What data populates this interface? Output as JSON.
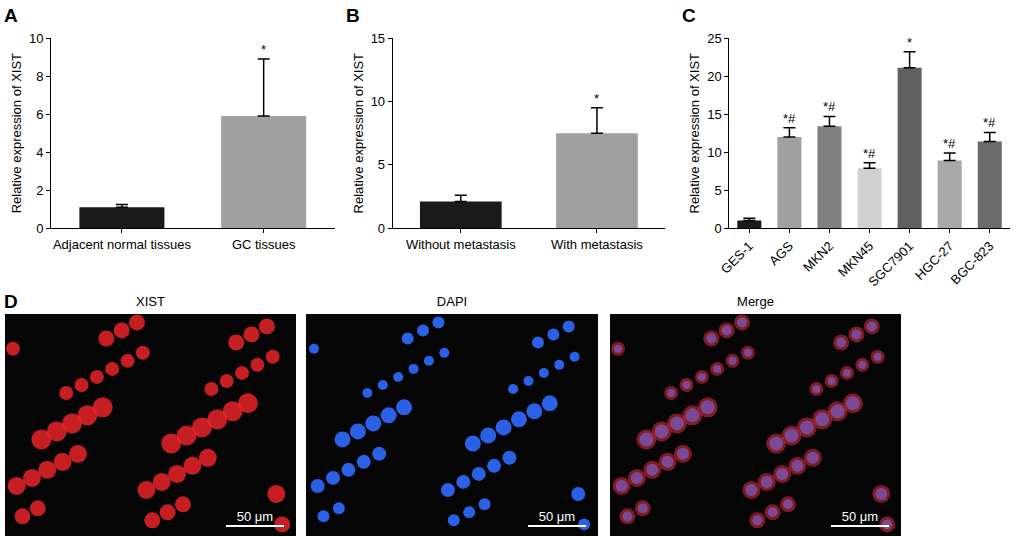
{
  "chart_data": [
    {
      "type": "bar",
      "panel": "A",
      "ylabel": "Relative expression of XIST",
      "categories": [
        "Adjacent normal tissues",
        "GC tissues"
      ],
      "values": [
        1.1,
        5.9
      ],
      "errors": [
        0.15,
        3.0
      ],
      "colors": [
        "#1a1a1a",
        "#a0a0a0"
      ],
      "annotations": [
        null,
        "*"
      ],
      "ylim": [
        0,
        10
      ],
      "yticks": [
        0,
        2,
        4,
        6,
        8,
        10
      ],
      "grid": false
    },
    {
      "type": "bar",
      "panel": "B",
      "ylabel": "Relative expression of XIST",
      "categories": [
        "Without metastasis",
        "With metastasis"
      ],
      "values": [
        2.1,
        7.5
      ],
      "errors": [
        0.5,
        2.0
      ],
      "colors": [
        "#1a1a1a",
        "#a0a0a0"
      ],
      "annotations": [
        null,
        "*"
      ],
      "ylim": [
        0,
        15
      ],
      "yticks": [
        0,
        5,
        10,
        15
      ],
      "grid": false
    },
    {
      "type": "bar",
      "panel": "C",
      "ylabel": "Relative expression of XIST",
      "categories": [
        "GES-1",
        "AGS",
        "MKN2",
        "MKN45",
        "SGC7901",
        "HGC-27",
        "BGC-823"
      ],
      "values": [
        1.0,
        12.0,
        13.4,
        7.9,
        21.1,
        8.9,
        11.4
      ],
      "errors": [
        0.3,
        1.2,
        1.3,
        0.7,
        2.1,
        1.0,
        1.2
      ],
      "colors": [
        "#1a1a1a",
        "#a0a0a0",
        "#808080",
        "#d0d0d0",
        "#606060",
        "#a8a8a8",
        "#6b6b6b"
      ],
      "annotations": [
        null,
        "*#",
        "*#",
        "*#",
        "*",
        "*#",
        "*#"
      ],
      "ylim": [
        0,
        25
      ],
      "yticks": [
        0,
        5,
        10,
        15,
        20,
        25
      ],
      "grid": false
    }
  ],
  "image_panel": {
    "panel": "D",
    "images": [
      {
        "title": "XIST",
        "scale_bar": "50 μm"
      },
      {
        "title": "DAPI",
        "scale_bar": "50 μm"
      },
      {
        "title": "Merge",
        "scale_bar": "50 μm"
      }
    ]
  }
}
